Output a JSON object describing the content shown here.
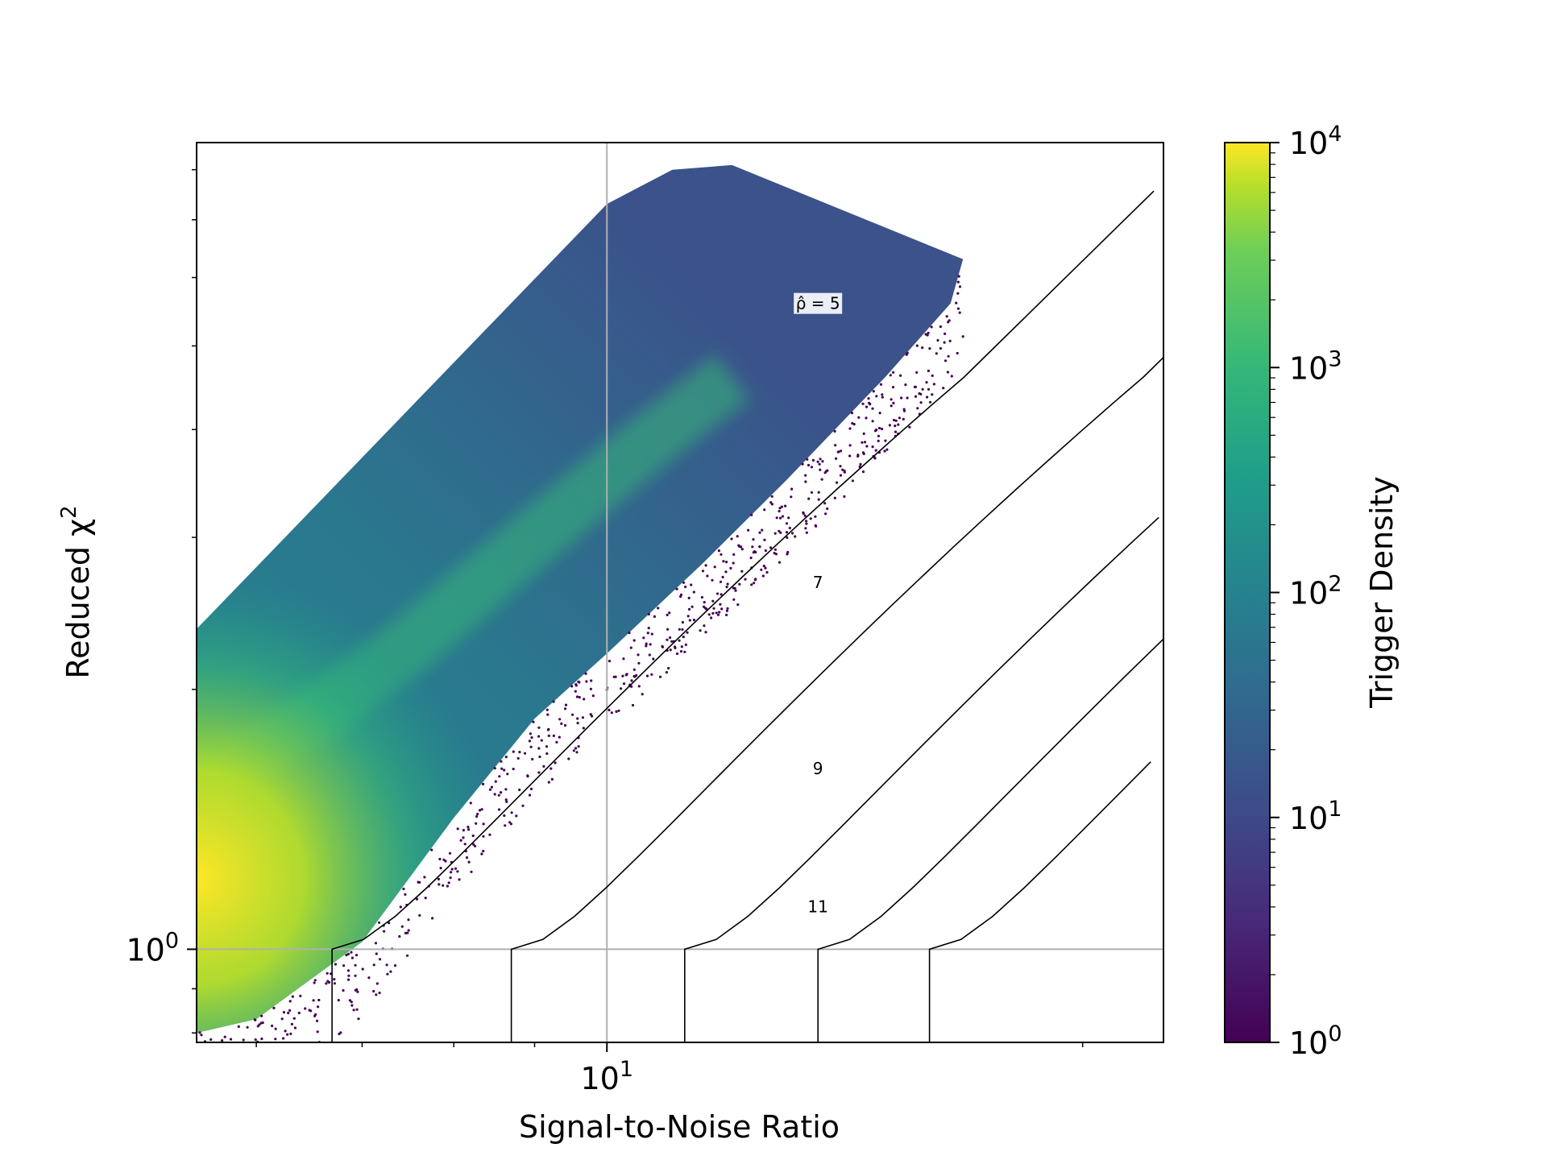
{
  "chart_data": {
    "type": "heatmap",
    "subtype": "hexbin density with detection-statistic contours",
    "xlabel": "Signal-to-Noise Ratio",
    "ylabel": "Reduced χ",
    "ylabel_superscript": "2",
    "xscale": "log",
    "yscale": "log",
    "xlim": [
      5.5,
      22.5
    ],
    "ylim": [
      0.78,
      8.6
    ],
    "x_ticks": [
      {
        "base": "10",
        "exp": "1",
        "value": 10
      }
    ],
    "y_ticks": [
      {
        "base": "10",
        "exp": "0",
        "value": 1
      }
    ],
    "grid": true,
    "colorbar": {
      "label": "Trigger Density",
      "scale": "log",
      "range": [
        1,
        10000
      ],
      "colormap": "viridis",
      "ticks": [
        {
          "base": "10",
          "exp": "0",
          "value": 1
        },
        {
          "base": "10",
          "exp": "1",
          "value": 10
        },
        {
          "base": "10",
          "exp": "2",
          "value": 100
        },
        {
          "base": "10",
          "exp": "3",
          "value": 1000
        },
        {
          "base": "10",
          "exp": "4",
          "value": 10000
        }
      ]
    },
    "contours": [
      {
        "level": 5,
        "snr_at_chisq_1": 6.7,
        "label": "ρ̂ = 5",
        "label_snr": 13.6,
        "label_chisq": 5.6
      },
      {
        "level": 7,
        "snr_at_chisq_1": 8.7,
        "label": "7",
        "label_snr": 13.6,
        "label_chisq": 2.66
      },
      {
        "level": 9,
        "snr_at_chisq_1": 11.2,
        "label": "9",
        "label_snr": 13.6,
        "label_chisq": 1.62
      },
      {
        "level": 11,
        "snr_at_chisq_1": 13.6,
        "label": "11",
        "label_snr": 13.6,
        "label_chisq": 1.12
      },
      {
        "level": 13,
        "snr_at_chisq_1": 16.0,
        "label": "",
        "label_snr": null,
        "label_chisq": null
      }
    ],
    "density_region": {
      "upper_edge": [
        [
          5.5,
          2.35
        ],
        [
          10,
          7.3
        ],
        [
          11.0,
          8.0
        ],
        [
          12.0,
          8.1
        ]
      ],
      "lower_edge": [
        [
          5.5,
          0.8
        ],
        [
          6.0,
          0.83
        ],
        [
          7.0,
          1.02
        ],
        [
          8.0,
          1.42
        ],
        [
          9.0,
          1.85
        ],
        [
          10.0,
          2.2
        ],
        [
          11.5,
          2.8
        ],
        [
          13.0,
          3.5
        ],
        [
          15.0,
          4.6
        ],
        [
          16.5,
          5.6
        ],
        [
          16.8,
          6.3
        ]
      ],
      "peak_density_at": [
        5.5,
        1.05
      ]
    },
    "colors": {
      "viridis_stops": [
        "#440154",
        "#3b528b",
        "#21918c",
        "#5ec962",
        "#fde725"
      ],
      "grid": "#b0b0b0",
      "contour": "#000000"
    }
  }
}
